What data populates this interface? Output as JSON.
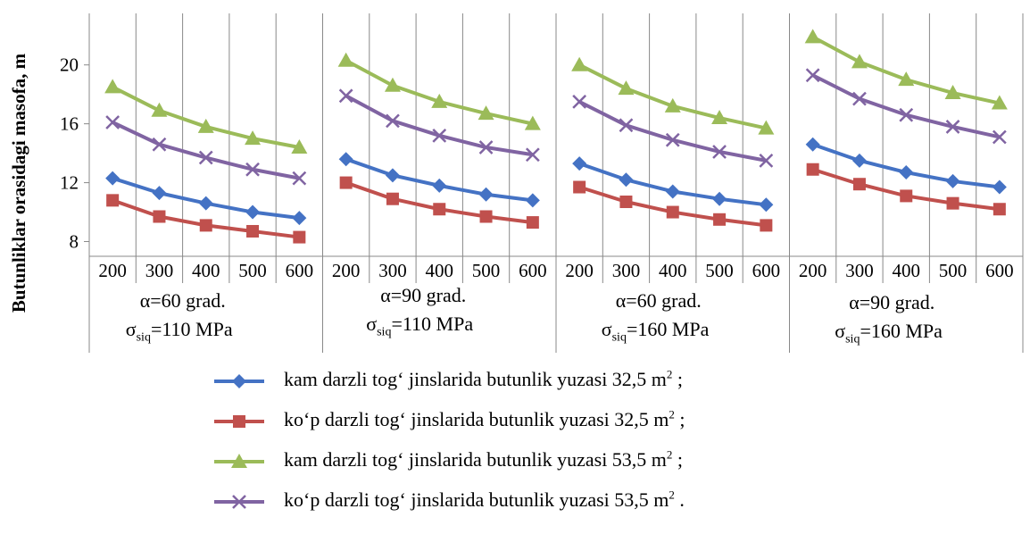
{
  "chart_data": {
    "type": "line",
    "ylabel": "Butunliklar orasidagi masofa, m",
    "xlabel": "",
    "ylim": [
      7,
      23.5
    ],
    "yticks": [
      8,
      12,
      16,
      20
    ],
    "categories": [
      "200",
      "300",
      "400",
      "500",
      "600"
    ],
    "grid": true,
    "legend_position": "bottom",
    "groups": [
      {
        "alpha": "α=60 grad.",
        "sigma_label": "σ",
        "sigma_sub": "siq",
        "sigma_value": "=110 MPa"
      },
      {
        "alpha": "α=90 grad.",
        "sigma_label": "σ",
        "sigma_sub": "siq",
        "sigma_value": "=110 MPa"
      },
      {
        "alpha": "α=60 grad.",
        "sigma_label": "σ",
        "sigma_sub": "siq",
        "sigma_value": "=160 MPa"
      },
      {
        "alpha": "α=90 grad.",
        "sigma_label": "σ",
        "sigma_sub": "siq",
        "sigma_value": "=160 MPa"
      }
    ],
    "series": [
      {
        "name": "kam darzli tog‘ jinslarida butunlik yuzasi 32,5 m",
        "sup": "2",
        "end": " ;",
        "color": "#4472C4",
        "marker": "diamond",
        "values": [
          [
            12.3,
            11.3,
            10.6,
            10.0,
            9.6
          ],
          [
            13.6,
            12.5,
            11.8,
            11.2,
            10.8
          ],
          [
            13.3,
            12.2,
            11.4,
            10.9,
            10.5
          ],
          [
            14.6,
            13.5,
            12.7,
            12.1,
            11.7
          ]
        ]
      },
      {
        "name": "ko‘p darzli tog‘ jinslarida butunlik yuzasi 32,5 m",
        "sup": "2",
        "end": " ;",
        "color": "#C0504D",
        "marker": "square",
        "values": [
          [
            10.8,
            9.7,
            9.1,
            8.7,
            8.3
          ],
          [
            12.0,
            10.9,
            10.2,
            9.7,
            9.3
          ],
          [
            11.7,
            10.7,
            10.0,
            9.5,
            9.1
          ],
          [
            12.9,
            11.9,
            11.1,
            10.6,
            10.2
          ]
        ]
      },
      {
        "name": "kam darzli tog‘ jinslarida butunlik yuzasi 53,5 m",
        "sup": "2",
        "end": " ;",
        "color": "#9BBB59",
        "marker": "triangle",
        "values": [
          [
            18.5,
            16.9,
            15.8,
            15.0,
            14.4
          ],
          [
            20.3,
            18.6,
            17.5,
            16.7,
            16.0
          ],
          [
            20.0,
            18.4,
            17.2,
            16.4,
            15.7
          ],
          [
            21.9,
            20.2,
            19.0,
            18.1,
            17.4
          ]
        ]
      },
      {
        "name": "ko‘p darzli tog‘ jinslarida butunlik yuzasi 53,5 m",
        "sup": "2",
        "end": " .",
        "color": "#8064A2",
        "marker": "x",
        "values": [
          [
            16.1,
            14.6,
            13.7,
            12.9,
            12.3
          ],
          [
            17.9,
            16.2,
            15.2,
            14.4,
            13.9
          ],
          [
            17.5,
            15.9,
            14.9,
            14.1,
            13.5
          ],
          [
            19.3,
            17.7,
            16.6,
            15.8,
            15.1
          ]
        ]
      }
    ]
  }
}
